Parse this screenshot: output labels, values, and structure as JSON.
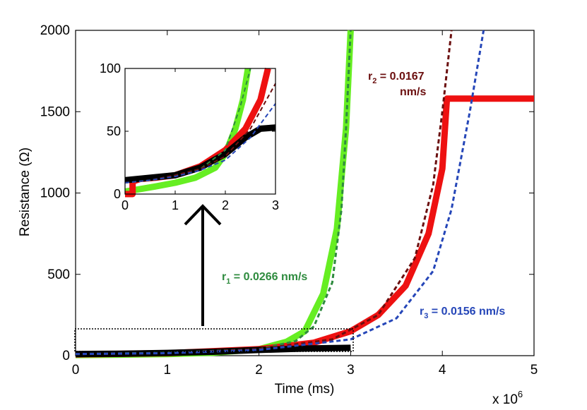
{
  "chart_data": {
    "type": "line",
    "xlabel": "Time (ms)",
    "ylabel": "Resistance (Ω)",
    "x_multiplier": "x 10",
    "x_multiplier_exp": "6",
    "xlim": [
      0,
      5
    ],
    "ylim": [
      0,
      2000
    ],
    "xticks": [
      "0",
      "1",
      "2",
      "3",
      "4",
      "5"
    ],
    "yticks": [
      "0",
      "500",
      "1000",
      "1500",
      "2000"
    ],
    "series": [
      {
        "name": "measured-green",
        "color": "#66ee22",
        "style": "thick-solid",
        "x": [
          0,
          0.5,
          1.0,
          1.5,
          2.0,
          2.3,
          2.5,
          2.7,
          2.85,
          2.95,
          3.0
        ],
        "y": [
          4,
          6,
          10,
          18,
          40,
          85,
          150,
          380,
          780,
          1400,
          2000
        ]
      },
      {
        "name": "measured-red",
        "color": "#ee1111",
        "style": "thick-solid",
        "x": [
          0,
          1.0,
          2.0,
          2.6,
          3.0,
          3.3,
          3.6,
          3.85,
          4.0,
          4.05,
          4.2,
          4.4,
          4.6,
          5.0
        ],
        "y": [
          8,
          15,
          40,
          80,
          150,
          250,
          430,
          750,
          1150,
          1580,
          1580,
          1580,
          1580,
          1580
        ]
      },
      {
        "name": "measured-black",
        "color": "#000000",
        "style": "thick-solid",
        "x": [
          0,
          0.5,
          1.0,
          1.5,
          2.0,
          2.5,
          3.0
        ],
        "y": [
          10,
          12,
          17,
          24,
          35,
          44,
          48
        ]
      },
      {
        "name": "fit-r1",
        "color": "#2e8b3e",
        "style": "dashed",
        "x": [
          0,
          1.0,
          2.0,
          2.4,
          2.6,
          2.8,
          2.9,
          2.95,
          3.0
        ],
        "y": [
          10,
          18,
          40,
          90,
          180,
          450,
          900,
          1400,
          2000
        ]
      },
      {
        "name": "fit-r2",
        "color": "#6b0f0f",
        "style": "dashed",
        "x": [
          0,
          1.0,
          2.0,
          2.8,
          3.3,
          3.7,
          3.9,
          4.0,
          4.1
        ],
        "y": [
          10,
          15,
          40,
          100,
          250,
          600,
          1050,
          1500,
          2000
        ]
      },
      {
        "name": "fit-r3",
        "color": "#2546b8",
        "style": "dashed",
        "x": [
          0,
          1.0,
          2.0,
          3.0,
          3.5,
          3.9,
          4.1,
          4.3,
          4.45
        ],
        "y": [
          10,
          15,
          35,
          100,
          230,
          520,
          900,
          1500,
          2000
        ]
      }
    ],
    "annotations": [
      {
        "label": "r",
        "sub": "1",
        "text": " = 0.0266 nm/s",
        "color": "#2e8b3e"
      },
      {
        "label": "r",
        "sub": "2",
        "text": " = 0.0167",
        "line2": "nm/s",
        "color": "#6b0f0f"
      },
      {
        "label": "r",
        "sub": "3",
        "text": " = 0.0156 nm/s",
        "color": "#2546b8"
      }
    ],
    "inset": {
      "xlim": [
        0,
        3
      ],
      "ylim": [
        0,
        100
      ],
      "xticks": [
        "0",
        "1",
        "2",
        "3"
      ],
      "yticks": [
        "0",
        "50",
        "100"
      ],
      "series": [
        {
          "name": "inset-green",
          "color": "#66ee22",
          "style": "thick-solid",
          "x": [
            0,
            0.3,
            0.6,
            1.0,
            1.4,
            1.8,
            2.0,
            2.2,
            2.35,
            2.45
          ],
          "y": [
            2,
            4,
            6,
            9,
            13,
            21,
            32,
            52,
            75,
            100
          ]
        },
        {
          "name": "inset-red",
          "color": "#ee1111",
          "style": "thick-solid",
          "x": [
            0,
            0.15,
            0.15,
            0.3,
            0.6,
            1.0,
            1.5,
            2.0,
            2.4,
            2.7,
            2.85
          ],
          "y": [
            0,
            0,
            10,
            12,
            13,
            15,
            22,
            35,
            52,
            75,
            100
          ]
        },
        {
          "name": "inset-black",
          "color": "#000000",
          "style": "thick-solid",
          "x": [
            0,
            0.5,
            1.0,
            1.5,
            2.0,
            2.4,
            2.7,
            3.0
          ],
          "y": [
            11,
            13,
            15,
            21,
            32,
            45,
            52,
            53
          ]
        },
        {
          "name": "inset-fit-r1",
          "color": "#2e8b3e",
          "style": "dashed",
          "x": [
            0,
            0.5,
            1.0,
            1.5,
            2.0,
            2.3,
            2.5
          ],
          "y": [
            9,
            11,
            15,
            20,
            35,
            70,
            100
          ]
        },
        {
          "name": "inset-fit-r2",
          "color": "#6b0f0f",
          "style": "dashed",
          "x": [
            0,
            0.5,
            1.0,
            1.5,
            2.0,
            2.5,
            3.0
          ],
          "y": [
            9,
            11,
            15,
            20,
            30,
            52,
            88
          ]
        },
        {
          "name": "inset-fit-r3",
          "color": "#2546b8",
          "style": "dashed",
          "x": [
            0,
            0.5,
            1.0,
            1.5,
            2.0,
            2.5,
            3.0
          ],
          "y": [
            9,
            11,
            14,
            19,
            27,
            45,
            72
          ]
        }
      ]
    }
  }
}
